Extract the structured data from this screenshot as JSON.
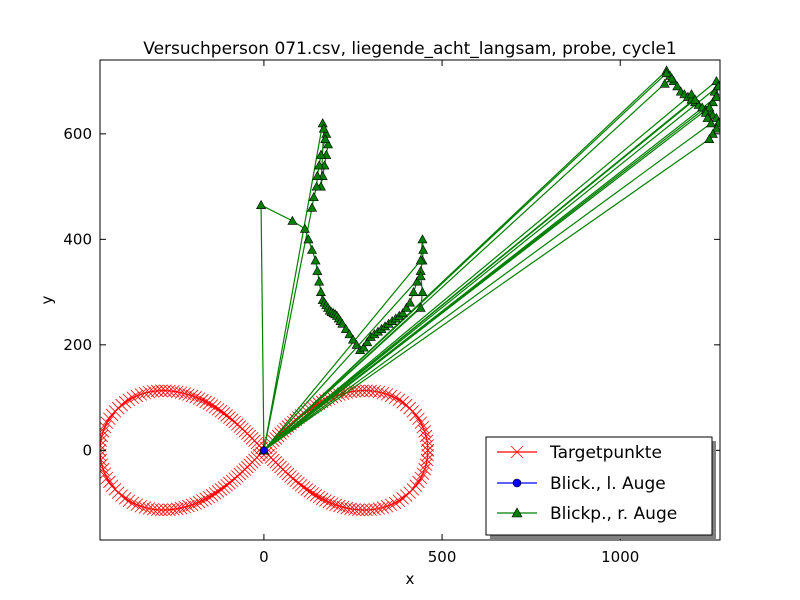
{
  "chart_data": {
    "type": "line",
    "title": "Versuchperson 071.csv, liegende_acht_langsam, probe, cycle1",
    "xlabel": "x",
    "ylabel": "y",
    "xlim": [
      -460,
      1280
    ],
    "ylim": [
      -170,
      740
    ],
    "xticks": [
      0,
      500,
      1000
    ],
    "yticks": [
      0,
      200,
      400,
      600
    ],
    "grid": false,
    "legend_position": "lower-right",
    "series": [
      {
        "name": "Targetpunkte",
        "color": "#ff0000",
        "marker": "x",
        "shape": "lemniscate",
        "center": [
          0,
          0
        ],
        "half_width": 460,
        "lobe_height": 160,
        "points": 220
      },
      {
        "name": "Blick., l. Auge",
        "color": "#0000ff",
        "marker": "circle",
        "x": [
          0,
          0
        ],
        "y": [
          0,
          0
        ]
      },
      {
        "name": "Blickp., r. Auge",
        "color": "#007f00",
        "marker": "triangle",
        "x": [
          0,
          -8,
          80,
          115,
          125,
          135,
          145,
          150,
          155,
          160,
          165,
          170,
          175,
          180,
          185,
          190,
          195,
          200,
          205,
          210,
          215,
          220,
          230,
          240,
          250,
          260,
          270,
          280,
          290,
          300,
          310,
          320,
          330,
          340,
          350,
          360,
          370,
          380,
          390,
          400,
          410,
          420,
          430,
          440,
          445,
          447,
          445,
          440,
          0,
          165,
          175,
          180,
          175,
          170,
          165,
          160,
          168,
          172,
          160,
          155,
          150,
          148,
          140,
          135,
          0,
          440,
          445,
          440,
          0,
          1130,
          1140,
          1150,
          1160,
          1170,
          1180,
          1190,
          1200,
          1210,
          1220,
          1230,
          1240,
          1250,
          1260,
          1270,
          1275,
          1270,
          1260,
          1250,
          0,
          1270,
          1265,
          1260,
          0,
          1250,
          1240,
          1245,
          1255,
          0,
          1130,
          1145,
          1125,
          0,
          1275,
          1270,
          0,
          1200,
          1210,
          0
        ],
        "y": [
          0,
          465,
          435,
          420,
          400,
          380,
          360,
          340,
          320,
          300,
          285,
          280,
          275,
          270,
          265,
          262,
          260,
          258,
          255,
          250,
          245,
          240,
          230,
          220,
          210,
          200,
          190,
          195,
          205,
          215,
          220,
          225,
          230,
          235,
          240,
          245,
          250,
          255,
          260,
          270,
          280,
          300,
          320,
          340,
          360,
          380,
          400,
          360,
          0,
          620,
          600,
          580,
          560,
          540,
          520,
          500,
          610,
          590,
          560,
          540,
          520,
          500,
          480,
          460,
          0,
          330,
          300,
          270,
          0,
          720,
          710,
          700,
          690,
          680,
          675,
          670,
          665,
          660,
          655,
          650,
          645,
          640,
          635,
          630,
          620,
          610,
          600,
          590,
          0,
          700,
          680,
          660,
          0,
          650,
          640,
          630,
          620,
          0,
          715,
          705,
          695,
          0,
          690,
          670,
          0,
          675,
          665,
          0
        ]
      }
    ]
  }
}
